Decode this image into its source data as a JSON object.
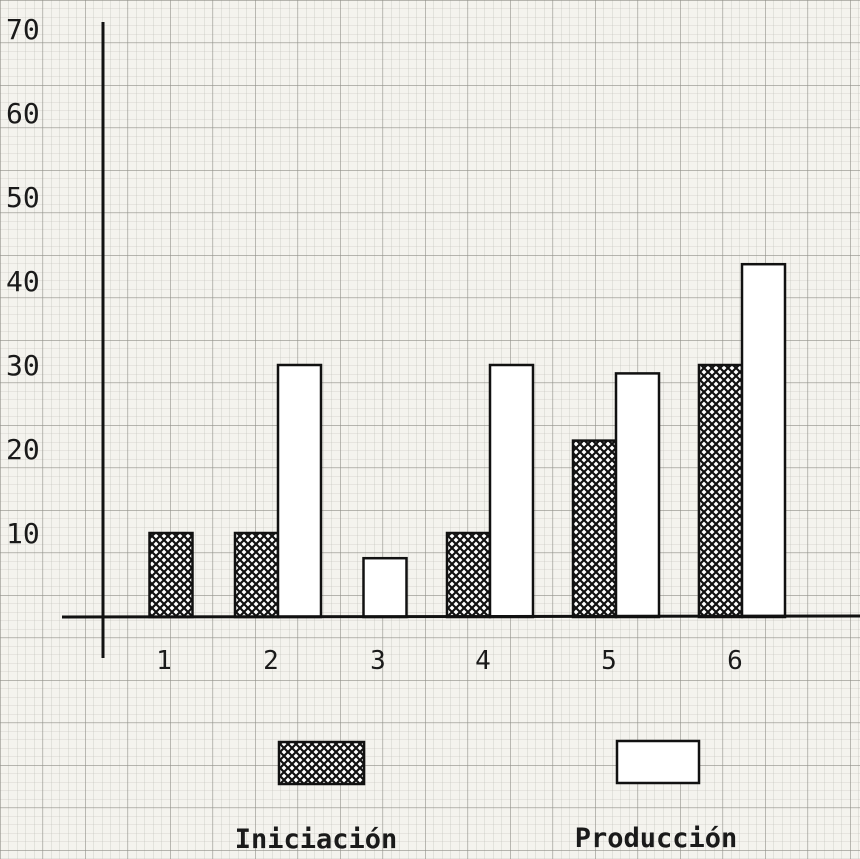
{
  "chart_data": {
    "type": "bar",
    "categories": [
      "1",
      "2",
      "3",
      "4",
      "5",
      "6"
    ],
    "series": [
      {
        "name": "Iniciación",
        "values": [
          10,
          10,
          0,
          10,
          21,
          30
        ],
        "pattern": "crosshatch",
        "color": "#1a1a1a"
      },
      {
        "name": "Producción",
        "values": [
          0,
          30,
          7,
          30,
          29,
          42
        ],
        "pattern": "empty",
        "color": "#ffffff"
      }
    ],
    "title": "",
    "xlabel": "",
    "ylabel": "",
    "ylim": [
      0,
      70
    ],
    "yticks": [
      "10",
      "20",
      "30",
      "40",
      "50",
      "60",
      "70"
    ],
    "grid": true,
    "legend": "bottom"
  }
}
